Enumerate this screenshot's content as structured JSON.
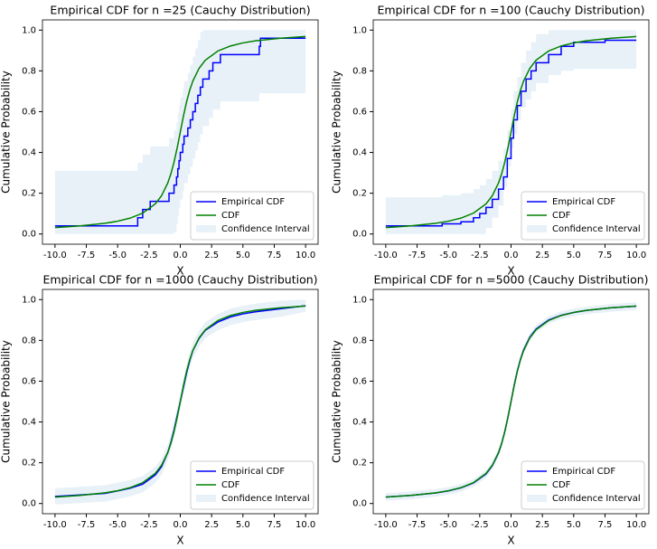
{
  "chart_data": [
    {
      "type": "line",
      "title": "Empirical CDF for n =25 (Cauchy Distribution)",
      "x_label": "X",
      "y_label": "Cumulative Probability",
      "xlim": [
        -11,
        11
      ],
      "ylim": [
        -0.05,
        1.05
      ],
      "xticks": [
        {
          "value": -10,
          "label": "-10.0"
        },
        -7.5,
        {
          "value": -5,
          "label": "-5.0"
        },
        -2.5,
        {
          "value": 0,
          "label": "0.0"
        },
        2.5,
        {
          "value": 5,
          "label": "5.0"
        },
        7.5,
        {
          "value": 10,
          "label": "10.0"
        }
      ],
      "yticks": [
        {
          "value": 0,
          "label": "0.0"
        },
        0.2,
        0.4,
        0.6,
        0.8,
        {
          "value": 1,
          "label": "1.0"
        }
      ],
      "legend": "lower right",
      "series": [
        {
          "name": "Empirical CDF",
          "color": "#0000ff",
          "step": true,
          "x": [
            -10,
            -3.4,
            -3.0,
            -2.4,
            -0.9,
            -0.5,
            -0.3,
            -0.2,
            -0.1,
            0,
            0.2,
            0.3,
            0.6,
            0.8,
            1.0,
            1.2,
            1.4,
            1.6,
            1.8,
            2.3,
            2.6,
            3.2,
            6.3,
            6.4,
            10
          ],
          "values": [
            0.04,
            0.08,
            0.12,
            0.16,
            0.2,
            0.24,
            0.28,
            0.32,
            0.36,
            0.4,
            0.44,
            0.48,
            0.52,
            0.56,
            0.6,
            0.64,
            0.68,
            0.72,
            0.76,
            0.8,
            0.84,
            0.88,
            0.92,
            0.96,
            0.96
          ]
        },
        {
          "name": "CDF",
          "color": "#008000",
          "x": [
            -10,
            -8,
            -6,
            -5,
            -4,
            -3,
            -2,
            -1.5,
            -1,
            -0.75,
            -0.5,
            -0.25,
            0,
            0.25,
            0.5,
            0.75,
            1,
            1.5,
            2,
            3,
            4,
            5,
            6,
            8,
            10
          ],
          "values": [
            0.0317,
            0.0396,
            0.0526,
            0.0628,
            0.078,
            0.1024,
            0.1476,
            0.1872,
            0.25,
            0.2952,
            0.3524,
            0.422,
            0.5,
            0.578,
            0.6476,
            0.7048,
            0.75,
            0.8128,
            0.8524,
            0.8976,
            0.922,
            0.9372,
            0.9474,
            0.9604,
            0.9683
          ]
        },
        {
          "name": "Confidence Interval",
          "color": "#e8f1f8",
          "step": true,
          "band": true,
          "x": [
            -10,
            -3.4,
            -3.0,
            -2.4,
            -0.9,
            -0.5,
            -0.3,
            -0.2,
            -0.1,
            0,
            0.2,
            0.3,
            0.6,
            0.8,
            1.0,
            1.2,
            1.4,
            1.6,
            1.8,
            2.3,
            2.6,
            3.2,
            6.3,
            6.4,
            10
          ],
          "upper": [
            0.31,
            0.35,
            0.39,
            0.43,
            0.47,
            0.51,
            0.55,
            0.59,
            0.63,
            0.67,
            0.71,
            0.75,
            0.79,
            0.83,
            0.87,
            0.91,
            0.95,
            0.99,
            1,
            1,
            1,
            1,
            1,
            1,
            1
          ],
          "lower": [
            0,
            0,
            0,
            0,
            0,
            0,
            0.01,
            0.05,
            0.09,
            0.13,
            0.17,
            0.21,
            0.25,
            0.29,
            0.33,
            0.37,
            0.41,
            0.45,
            0.49,
            0.53,
            0.57,
            0.61,
            0.65,
            0.69,
            0.69
          ]
        }
      ]
    },
    {
      "type": "line",
      "title": "Empirical CDF for n =100 (Cauchy Distribution)",
      "x_label": "X",
      "y_label": "Cumulative Probability",
      "xlim": [
        -11,
        11
      ],
      "ylim": [
        -0.05,
        1.05
      ],
      "xticks": [
        {
          "value": -10,
          "label": "-10.0"
        },
        -7.5,
        {
          "value": -5,
          "label": "-5.0"
        },
        -2.5,
        {
          "value": 0,
          "label": "0.0"
        },
        2.5,
        {
          "value": 5,
          "label": "5.0"
        },
        7.5,
        {
          "value": 10,
          "label": "10.0"
        }
      ],
      "yticks": [
        {
          "value": 0,
          "label": "0.0"
        },
        0.2,
        0.4,
        0.6,
        0.8,
        {
          "value": 1,
          "label": "1.0"
        }
      ],
      "legend": "lower right",
      "series": [
        {
          "name": "Empirical CDF",
          "color": "#0000ff",
          "step": true,
          "x": [
            -10,
            -5.5,
            -4,
            -3,
            -2.5,
            -2,
            -1.5,
            -1,
            -0.6,
            -0.3,
            0,
            0.2,
            0.5,
            0.8,
            1.2,
            1.6,
            2,
            3,
            4,
            5,
            7.5,
            10
          ],
          "values": [
            0.04,
            0.05,
            0.06,
            0.08,
            0.1,
            0.13,
            0.17,
            0.22,
            0.28,
            0.37,
            0.47,
            0.56,
            0.63,
            0.7,
            0.76,
            0.8,
            0.84,
            0.88,
            0.92,
            0.94,
            0.95,
            0.95
          ]
        },
        {
          "name": "CDF",
          "color": "#008000",
          "x": [
            -10,
            -8,
            -6,
            -5,
            -4,
            -3,
            -2,
            -1.5,
            -1,
            -0.75,
            -0.5,
            -0.25,
            0,
            0.25,
            0.5,
            0.75,
            1,
            1.5,
            2,
            3,
            4,
            5,
            6,
            8,
            10
          ],
          "values": [
            0.0317,
            0.0396,
            0.0526,
            0.0628,
            0.078,
            0.1024,
            0.1476,
            0.1872,
            0.25,
            0.2952,
            0.3524,
            0.422,
            0.5,
            0.578,
            0.6476,
            0.7048,
            0.75,
            0.8128,
            0.8524,
            0.8976,
            0.922,
            0.9372,
            0.9474,
            0.9604,
            0.9683
          ]
        },
        {
          "name": "Confidence Interval",
          "color": "#e8f1f8",
          "step": true,
          "band": true,
          "x": [
            -10,
            -5.5,
            -4,
            -3,
            -2.5,
            -2,
            -1.5,
            -1,
            -0.6,
            -0.3,
            0,
            0.2,
            0.5,
            0.8,
            1.2,
            1.6,
            2,
            3,
            4,
            5,
            7.5,
            10
          ],
          "upper": [
            0.18,
            0.19,
            0.2,
            0.22,
            0.24,
            0.27,
            0.31,
            0.36,
            0.42,
            0.51,
            0.61,
            0.7,
            0.77,
            0.84,
            0.9,
            0.94,
            0.98,
            1,
            1,
            1,
            1,
            1
          ],
          "lower": [
            0,
            0,
            0,
            0,
            0,
            0,
            0.03,
            0.08,
            0.14,
            0.23,
            0.33,
            0.42,
            0.49,
            0.56,
            0.62,
            0.66,
            0.7,
            0.74,
            0.78,
            0.8,
            0.81,
            0.81
          ]
        }
      ]
    },
    {
      "type": "line",
      "title": "Empirical CDF for n =1000 (Cauchy Distribution)",
      "x_label": "X",
      "y_label": "Cumulative Probability",
      "xlim": [
        -11,
        11
      ],
      "ylim": [
        -0.05,
        1.05
      ],
      "xticks": [
        {
          "value": -10,
          "label": "-10.0"
        },
        -7.5,
        {
          "value": -5,
          "label": "-5.0"
        },
        -2.5,
        {
          "value": 0,
          "label": "0.0"
        },
        2.5,
        {
          "value": 5,
          "label": "5.0"
        },
        7.5,
        {
          "value": 10,
          "label": "10.0"
        }
      ],
      "yticks": [
        {
          "value": 0,
          "label": "0.0"
        },
        0.2,
        0.4,
        0.6,
        0.8,
        {
          "value": 1,
          "label": "1.0"
        }
      ],
      "legend": "lower right",
      "series": [
        {
          "name": "Empirical CDF",
          "color": "#0000ff",
          "x": [
            -10,
            -8,
            -6,
            -5,
            -4,
            -3,
            -2,
            -1.5,
            -1,
            -0.75,
            -0.5,
            -0.25,
            0,
            0.25,
            0.5,
            0.75,
            1,
            1.5,
            2,
            3,
            4,
            5,
            6,
            8,
            10
          ],
          "values": [
            0.035,
            0.042,
            0.05,
            0.062,
            0.075,
            0.095,
            0.14,
            0.18,
            0.25,
            0.3,
            0.36,
            0.43,
            0.5,
            0.57,
            0.64,
            0.7,
            0.75,
            0.81,
            0.85,
            0.89,
            0.915,
            0.93,
            0.94,
            0.955,
            0.97
          ]
        },
        {
          "name": "CDF",
          "color": "#008000",
          "x": [
            -10,
            -8,
            -6,
            -5,
            -4,
            -3,
            -2,
            -1.5,
            -1,
            -0.75,
            -0.5,
            -0.25,
            0,
            0.25,
            0.5,
            0.75,
            1,
            1.5,
            2,
            3,
            4,
            5,
            6,
            8,
            10
          ],
          "values": [
            0.0317,
            0.0396,
            0.0526,
            0.0628,
            0.078,
            0.1024,
            0.1476,
            0.1872,
            0.25,
            0.2952,
            0.3524,
            0.422,
            0.5,
            0.578,
            0.6476,
            0.7048,
            0.75,
            0.8128,
            0.8524,
            0.8976,
            0.922,
            0.9372,
            0.9474,
            0.9604,
            0.9683
          ]
        },
        {
          "name": "Confidence Interval",
          "color": "#e8f1f8",
          "band": true,
          "x": [
            -10,
            -8,
            -6,
            -5,
            -4,
            -3,
            -2,
            -1.5,
            -1,
            -0.75,
            -0.5,
            -0.25,
            0,
            0.25,
            0.5,
            0.75,
            1,
            1.5,
            2,
            3,
            4,
            5,
            6,
            8,
            10
          ],
          "upper": [
            0.075,
            0.082,
            0.09,
            0.102,
            0.115,
            0.135,
            0.18,
            0.22,
            0.29,
            0.34,
            0.4,
            0.47,
            0.54,
            0.61,
            0.68,
            0.74,
            0.79,
            0.85,
            0.89,
            0.93,
            0.955,
            0.97,
            0.98,
            0.995,
            1
          ]
        },
        {
          "name": null
        }
      ]
    },
    {
      "type": "line",
      "title": "Empirical CDF for n =5000 (Cauchy Distribution)",
      "x_label": "X",
      "y_label": "Cumulative Probability",
      "xlim": [
        -11,
        11
      ],
      "ylim": [
        -0.05,
        1.05
      ],
      "xticks": [
        {
          "value": -10,
          "label": "-10.0"
        },
        -7.5,
        {
          "value": -5,
          "label": "-5.0"
        },
        -2.5,
        {
          "value": 0,
          "label": "0.0"
        },
        2.5,
        {
          "value": 5,
          "label": "5.0"
        },
        7.5,
        {
          "value": 10,
          "label": "10.0"
        }
      ],
      "yticks": [
        {
          "value": 0,
          "label": "0.0"
        },
        0.2,
        0.4,
        0.6,
        0.8,
        {
          "value": 1,
          "label": "1.0"
        }
      ],
      "legend": "lower right",
      "series": [
        {
          "name": "Empirical CDF",
          "color": "#0000ff",
          "x": [
            -10,
            -8,
            -6,
            -5,
            -4,
            -3,
            -2,
            -1.5,
            -1,
            -0.75,
            -0.5,
            -0.25,
            0,
            0.25,
            0.5,
            0.75,
            1,
            1.5,
            2,
            3,
            4,
            5,
            6,
            8,
            10
          ],
          "values": [
            0.032,
            0.04,
            0.052,
            0.062,
            0.077,
            0.101,
            0.145,
            0.185,
            0.248,
            0.294,
            0.353,
            0.423,
            0.501,
            0.58,
            0.65,
            0.707,
            0.753,
            0.816,
            0.856,
            0.9,
            0.923,
            0.937,
            0.947,
            0.96,
            0.968
          ]
        },
        {
          "name": "CDF",
          "color": "#008000",
          "x": [
            -10,
            -8,
            -6,
            -5,
            -4,
            -3,
            -2,
            -1.5,
            -1,
            -0.75,
            -0.5,
            -0.25,
            0,
            0.25,
            0.5,
            0.75,
            1,
            1.5,
            2,
            3,
            4,
            5,
            6,
            8,
            10
          ],
          "values": [
            0.0317,
            0.0396,
            0.0526,
            0.0628,
            0.078,
            0.1024,
            0.1476,
            0.1872,
            0.25,
            0.2952,
            0.3524,
            0.422,
            0.5,
            0.578,
            0.6476,
            0.7048,
            0.75,
            0.8128,
            0.8524,
            0.8976,
            0.922,
            0.9372,
            0.9474,
            0.9604,
            0.9683
          ]
        },
        {
          "name": "Confidence Interval",
          "color": "#e8f1f8",
          "band": true,
          "x": [
            -10,
            -8,
            -6,
            -5,
            -4,
            -3,
            -2,
            -1.5,
            -1,
            -0.75,
            -0.5,
            -0.25,
            0,
            0.25,
            0.5,
            0.75,
            1,
            1.5,
            2,
            3,
            4,
            5,
            6,
            8,
            10
          ],
          "upper": [
            0.051,
            0.059,
            0.071,
            0.081,
            0.096,
            0.12,
            0.164,
            0.204,
            0.267,
            0.313,
            0.372,
            0.442,
            0.52,
            0.599,
            0.669,
            0.726,
            0.772,
            0.835,
            0.875,
            0.919,
            0.942,
            0.956,
            0.966,
            0.979,
            0.987
          ],
          "lower": [
            0.013,
            0.021,
            0.033,
            0.043,
            0.058,
            0.082,
            0.126,
            0.166,
            0.229,
            0.275,
            0.334,
            0.404,
            0.482,
            0.561,
            0.631,
            0.688,
            0.734,
            0.797,
            0.837,
            0.881,
            0.904,
            0.918,
            0.928,
            0.941,
            0.949
          ]
        }
      ]
    }
  ]
}
